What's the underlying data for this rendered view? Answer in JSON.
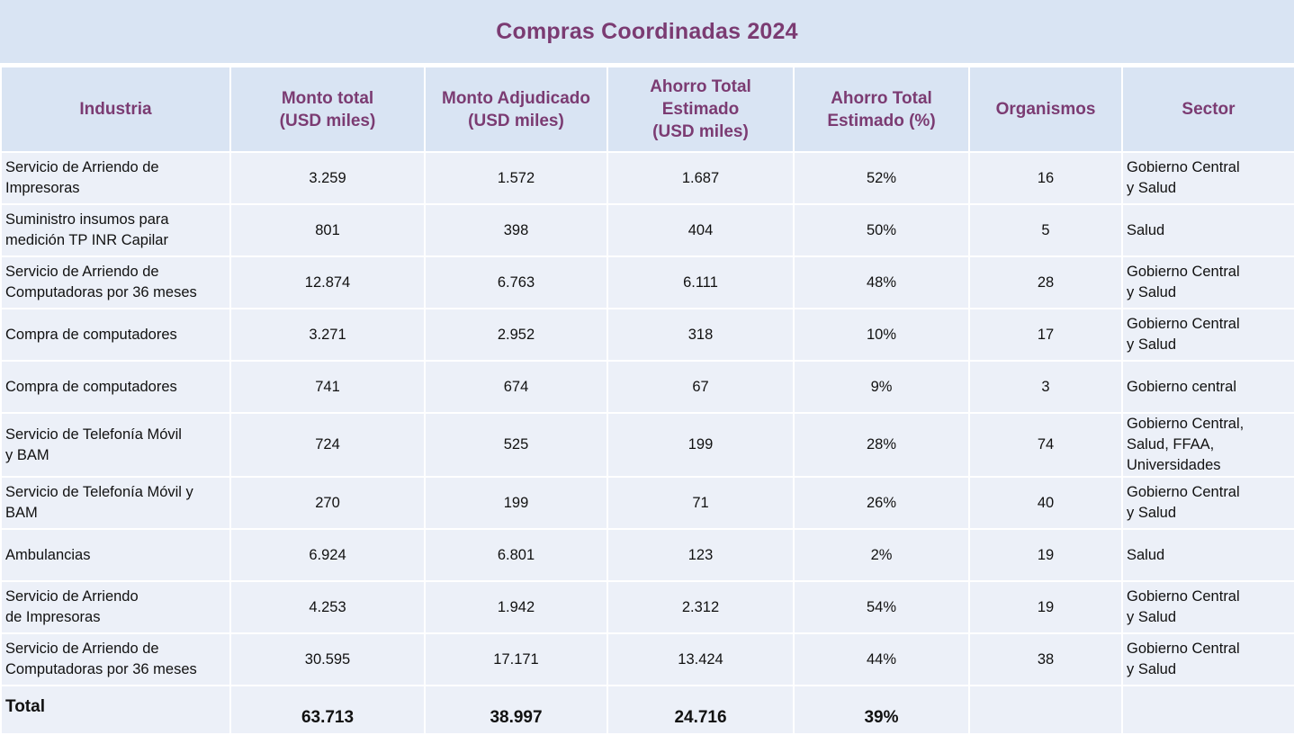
{
  "title": "Compras Coordinadas 2024",
  "headers": {
    "industria": "Industria",
    "monto_total": [
      "Monto total",
      "(USD miles)"
    ],
    "monto_adjudicado": [
      "Monto Adjudicado",
      "(USD miles)"
    ],
    "ahorro_total": [
      "Ahorro Total",
      "Estimado",
      "(USD miles)"
    ],
    "ahorro_pct": [
      "Ahorro Total",
      "Estimado (%)"
    ],
    "organismos": "Organismos",
    "sector": "Sector"
  },
  "rows": [
    {
      "industria": [
        "Servicio de Arriendo de",
        "Impresoras"
      ],
      "monto_total": "3.259",
      "monto_adjudicado": "1.572",
      "ahorro_total": "1.687",
      "ahorro_pct": "52%",
      "organismos": "16",
      "sector": [
        "Gobierno Central",
        "y Salud"
      ]
    },
    {
      "industria": [
        "Suministro insumos para",
        "medición TP INR Capilar"
      ],
      "monto_total": "801",
      "monto_adjudicado": "398",
      "ahorro_total": "404",
      "ahorro_pct": "50%",
      "organismos": "5",
      "sector": [
        "Salud"
      ]
    },
    {
      "industria": [
        "Servicio de Arriendo de",
        "Computadoras por 36 meses"
      ],
      "monto_total": "12.874",
      "monto_adjudicado": "6.763",
      "ahorro_total": "6.111",
      "ahorro_pct": "48%",
      "organismos": "28",
      "sector": [
        "Gobierno Central",
        "y Salud"
      ]
    },
    {
      "industria": [
        "Compra de computadores"
      ],
      "monto_total": "3.271",
      "monto_adjudicado": "2.952",
      "ahorro_total": "318",
      "ahorro_pct": "10%",
      "organismos": "17",
      "sector": [
        "Gobierno Central",
        "y Salud"
      ]
    },
    {
      "industria": [
        "Compra de computadores"
      ],
      "monto_total": "741",
      "monto_adjudicado": "674",
      "ahorro_total": "67",
      "ahorro_pct": "9%",
      "organismos": "3",
      "sector": [
        "Gobierno central"
      ]
    },
    {
      "industria": [
        "Servicio de Telefonía Móvil",
        "y BAM"
      ],
      "monto_total": "724",
      "monto_adjudicado": "525",
      "ahorro_total": "199",
      "ahorro_pct": "28%",
      "organismos": "74",
      "sector": [
        "Gobierno Central,",
        "Salud, FFAA,",
        "Universidades"
      ]
    },
    {
      "industria": [
        "Servicio de Telefonía Móvil y",
        "BAM"
      ],
      "monto_total": "270",
      "monto_adjudicado": "199",
      "ahorro_total": "71",
      "ahorro_pct": "26%",
      "organismos": "40",
      "sector": [
        "Gobierno Central",
        "y Salud"
      ]
    },
    {
      "industria": [
        "Ambulancias"
      ],
      "monto_total": "6.924",
      "monto_adjudicado": "6.801",
      "ahorro_total": "123",
      "ahorro_pct": "2%",
      "organismos": "19",
      "sector": [
        "Salud"
      ]
    },
    {
      "industria": [
        "Servicio de Arriendo",
        "de Impresoras"
      ],
      "monto_total": "4.253",
      "monto_adjudicado": "1.942",
      "ahorro_total": "2.312",
      "ahorro_pct": "54%",
      "organismos": "19",
      "sector": [
        "Gobierno Central",
        "y Salud"
      ]
    },
    {
      "industria": [
        "Servicio de Arriendo de",
        "Computadoras por 36 meses"
      ],
      "monto_total": "30.595",
      "monto_adjudicado": "17.171",
      "ahorro_total": "13.424",
      "ahorro_pct": "44%",
      "organismos": "38",
      "sector": [
        "Gobierno Central",
        "y Salud"
      ]
    }
  ],
  "total": {
    "label": "Total",
    "monto_total": "63.713",
    "monto_adjudicado": "38.997",
    "ahorro_total": "24.716",
    "ahorro_pct": "39%",
    "organismos": "",
    "sector": ""
  }
}
